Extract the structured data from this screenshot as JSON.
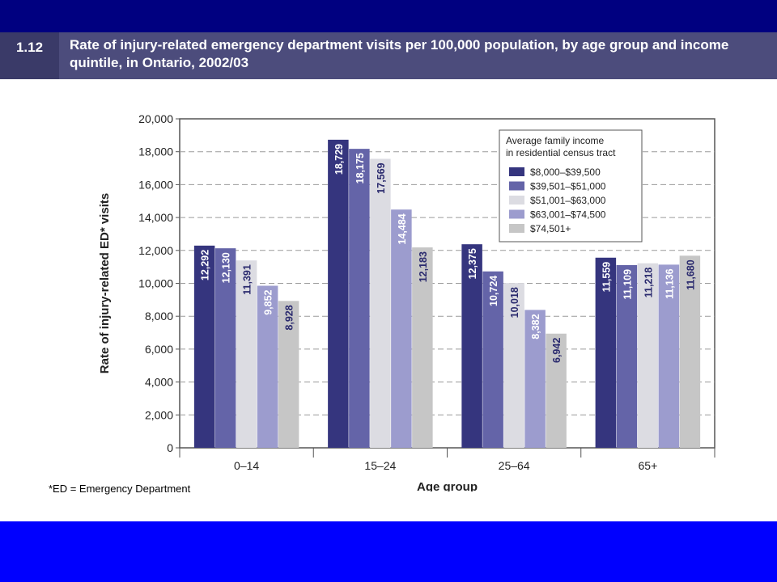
{
  "figure": {
    "number": "1.12",
    "title": "Rate of injury-related emergency department visits per 100,000 population, by age group and income quintile, in Ontario, 2002/03"
  },
  "footnote": "*ED = Emergency Department",
  "colors": {
    "top_bar": "#000080",
    "title_band": "#4c4c7c",
    "bottom_bar": "#0000ff"
  },
  "chart_data": {
    "type": "bar",
    "title": "",
    "xlabel": "Age group",
    "ylabel": "Rate of injury-related ED* visits",
    "ylim": [
      0,
      20000
    ],
    "yticks": [
      0,
      2000,
      4000,
      6000,
      8000,
      10000,
      12000,
      14000,
      16000,
      18000,
      20000
    ],
    "ytick_labels": [
      "0",
      "2,000",
      "4,000",
      "6,000",
      "8,000",
      "10,000",
      "12,000",
      "14,000",
      "16,000",
      "18,000",
      "20,000"
    ],
    "grid": "horizontal dashed",
    "legend_placement": "top-right",
    "legend_title": "Average family income in residential census tract",
    "categories": [
      "0–14",
      "15–24",
      "25–64",
      "65+"
    ],
    "series": [
      {
        "name": "$8,000–$39,500",
        "color": "#35357e",
        "values": [
          12292,
          18729,
          12375,
          11559
        ],
        "labels": [
          "12,292",
          "18,729",
          "12,375",
          "11,559"
        ]
      },
      {
        "name": "$39,501–$51,000",
        "color": "#6464a8",
        "values": [
          12130,
          18175,
          10724,
          11109
        ],
        "labels": [
          "12,130",
          "18,175",
          "10,724",
          "11,109"
        ]
      },
      {
        "name": "$51,001–$63,000",
        "color": "#dcdce2",
        "values": [
          11391,
          17569,
          10018,
          11218
        ],
        "labels": [
          "11,391",
          "17,569",
          "10,018",
          "11,218"
        ]
      },
      {
        "name": "$63,001–$74,500",
        "color": "#9c9cce",
        "values": [
          9852,
          14484,
          8382,
          11136
        ],
        "labels": [
          "9,852",
          "14,484",
          "8,382",
          "11,136"
        ]
      },
      {
        "name": "$74,501+",
        "color": "#c6c6c6",
        "values": [
          8928,
          12183,
          6942,
          11680
        ],
        "labels": [
          "8,928",
          "12,183",
          "6,942",
          "11,680"
        ]
      }
    ]
  }
}
